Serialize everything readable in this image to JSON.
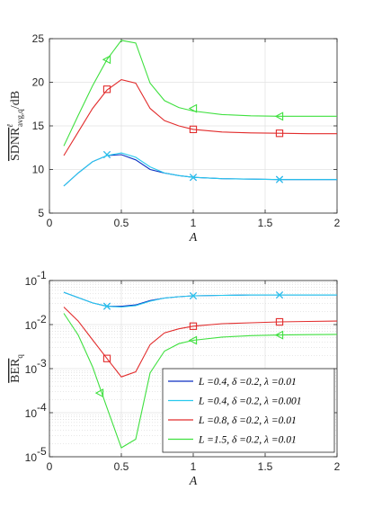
{
  "chart_data": [
    {
      "type": "line",
      "xlabel": "A",
      "ylabel": "SDNR",
      "ylabel_sub": "avg,q",
      "ylabel_sup": "ℓ",
      "ylabel_unit": "/dB",
      "xlim": [
        0,
        2
      ],
      "ylim": [
        5,
        25
      ],
      "xticks": [
        0,
        0.5,
        1,
        1.5,
        2
      ],
      "xtick_labels": [
        "0",
        "0.5",
        "1",
        "1.5",
        "2"
      ],
      "yticks": [
        5,
        10,
        15,
        20,
        25
      ],
      "ytick_labels": [
        "5",
        "10",
        "15",
        "20",
        "25"
      ],
      "grid": true,
      "series": [
        {
          "name": "L =0.4, δ =0.2, λ =0.01",
          "color": "#0a2fc2",
          "x": [
            0.1,
            0.2,
            0.3,
            0.4,
            0.5,
            0.6,
            0.7,
            0.8,
            0.9,
            1.0,
            1.2,
            1.4,
            1.6,
            1.8,
            2.0
          ],
          "y": [
            8.1,
            9.6,
            10.9,
            11.6,
            11.7,
            11.1,
            10.0,
            9.6,
            9.3,
            9.1,
            8.95,
            8.9,
            8.85,
            8.85,
            8.85
          ],
          "markers": {
            "symbol": "x",
            "x": [
              0.4,
              1.0,
              1.6
            ],
            "y": [
              11.7,
              9.1,
              8.85
            ]
          }
        },
        {
          "name": "L =0.4, δ =0.2, λ =0.001",
          "color": "#27c9ee",
          "x": [
            0.1,
            0.2,
            0.3,
            0.4,
            0.5,
            0.6,
            0.7,
            0.8,
            0.9,
            1.0,
            1.2,
            1.4,
            1.6,
            1.8,
            2.0
          ],
          "y": [
            8.1,
            9.6,
            10.9,
            11.6,
            11.9,
            11.4,
            10.3,
            9.6,
            9.3,
            9.1,
            8.95,
            8.9,
            8.85,
            8.85,
            8.85
          ],
          "markers": {
            "symbol": "x",
            "x": [
              0.4,
              1.0,
              1.6
            ],
            "y": [
              11.7,
              9.1,
              8.85
            ]
          }
        },
        {
          "name": "L =0.8, δ =0.2, λ =0.01",
          "color": "#e22c2c",
          "x": [
            0.1,
            0.2,
            0.3,
            0.4,
            0.5,
            0.6,
            0.7,
            0.8,
            0.9,
            1.0,
            1.2,
            1.4,
            1.6,
            1.8,
            2.0
          ],
          "y": [
            11.6,
            14.3,
            17.0,
            19.1,
            20.3,
            19.9,
            17.0,
            15.6,
            15.0,
            14.6,
            14.3,
            14.2,
            14.15,
            14.1,
            14.1
          ],
          "markers": {
            "symbol": "square",
            "x": [
              0.4,
              1.0,
              1.6
            ],
            "y": [
              19.2,
              14.6,
              14.15
            ]
          }
        },
        {
          "name": "L =1.5, δ =0.2, λ =0.01",
          "color": "#3fe03f",
          "x": [
            0.1,
            0.2,
            0.3,
            0.4,
            0.5,
            0.6,
            0.7,
            0.8,
            0.9,
            1.0,
            1.2,
            1.4,
            1.6,
            1.8,
            2.0
          ],
          "y": [
            12.7,
            16.2,
            19.6,
            22.6,
            24.8,
            24.5,
            19.9,
            17.9,
            17.1,
            16.7,
            16.3,
            16.15,
            16.1,
            16.1,
            16.1
          ],
          "markers": {
            "symbol": "triangle-left",
            "x": [
              0.4,
              1.0,
              1.6
            ],
            "y": [
              22.6,
              17.0,
              16.1
            ]
          }
        }
      ]
    },
    {
      "type": "line",
      "xlabel": "A",
      "ylabel": "BER",
      "ylabel_sub": "q",
      "yscale": "log",
      "xlim": [
        0,
        2
      ],
      "ylim": [
        1e-05,
        0.1
      ],
      "xticks": [
        0,
        0.5,
        1,
        1.5,
        2
      ],
      "xtick_labels": [
        "0",
        "0.5",
        "1",
        "1.5",
        "2"
      ],
      "yticks": [
        1e-05,
        0.0001,
        0.001,
        0.01,
        0.1
      ],
      "ytick_labels": [
        {
          "base": "10",
          "exp": "-5"
        },
        {
          "base": "10",
          "exp": "-4"
        },
        {
          "base": "10",
          "exp": "-3"
        },
        {
          "base": "10",
          "exp": "-2"
        },
        {
          "base": "10",
          "exp": "-1"
        }
      ],
      "grid": true,
      "legend_position": "bottom-right",
      "series": [
        {
          "name": "L =0.4, δ =0.2, λ =0.01",
          "legend_parts": {
            "L": "0.4",
            "delta": "0.2",
            "lambda": "0.01"
          },
          "color": "#0a2fc2",
          "x": [
            0.1,
            0.2,
            0.3,
            0.4,
            0.5,
            0.6,
            0.7,
            0.8,
            0.9,
            1.0,
            1.2,
            1.4,
            1.6,
            1.8,
            2.0
          ],
          "y": [
            0.054,
            0.041,
            0.031,
            0.026,
            0.026,
            0.028,
            0.035,
            0.04,
            0.043,
            0.045,
            0.046,
            0.047,
            0.047,
            0.047,
            0.047
          ],
          "markers": {
            "symbol": "x",
            "x": [
              0.4,
              1.0,
              1.6
            ],
            "y": [
              0.026,
              0.045,
              0.047
            ]
          }
        },
        {
          "name": "L =0.4, δ =0.2, λ =0.001",
          "legend_parts": {
            "L": "0.4",
            "delta": "0.2",
            "lambda": "0.001"
          },
          "color": "#27c9ee",
          "x": [
            0.1,
            0.2,
            0.3,
            0.4,
            0.5,
            0.6,
            0.7,
            0.8,
            0.9,
            1.0,
            1.2,
            1.4,
            1.6,
            1.8,
            2.0
          ],
          "y": [
            0.054,
            0.041,
            0.031,
            0.026,
            0.025,
            0.027,
            0.034,
            0.04,
            0.043,
            0.045,
            0.046,
            0.047,
            0.047,
            0.047,
            0.047
          ],
          "markers": {
            "symbol": "x",
            "x": [
              0.4,
              1.0,
              1.6
            ],
            "y": [
              0.026,
              0.045,
              0.047
            ]
          }
        },
        {
          "name": "L =0.8, δ =0.2, λ =0.01",
          "legend_parts": {
            "L": "0.8",
            "delta": "0.2",
            "lambda": "0.01"
          },
          "color": "#e22c2c",
          "x": [
            0.1,
            0.2,
            0.3,
            0.4,
            0.5,
            0.6,
            0.7,
            0.8,
            0.9,
            1.0,
            1.2,
            1.4,
            1.6,
            1.8,
            2.0
          ],
          "y": [
            0.025,
            0.012,
            0.0045,
            0.0017,
            0.00065,
            0.00085,
            0.0035,
            0.0065,
            0.008,
            0.0092,
            0.0105,
            0.011,
            0.0115,
            0.0118,
            0.012
          ],
          "markers": {
            "symbol": "square",
            "x": [
              0.4,
              1.0,
              1.6
            ],
            "y": [
              0.0017,
              0.0092,
              0.0115
            ]
          }
        },
        {
          "name": "L =1.5, δ =0.2, λ =0.01",
          "legend_parts": {
            "L": "1.5",
            "delta": "0.2",
            "lambda": "0.01"
          },
          "color": "#3fe03f",
          "x": [
            0.1,
            0.2,
            0.3,
            0.4,
            0.5,
            0.6,
            0.7,
            0.8,
            0.9,
            1.0,
            1.2,
            1.4,
            1.6,
            1.8,
            2.0
          ],
          "y": [
            0.018,
            0.0058,
            0.0011,
            0.00013,
            1.6e-05,
            2.5e-05,
            0.0008,
            0.0025,
            0.0037,
            0.0044,
            0.0052,
            0.0056,
            0.0058,
            0.0059,
            0.006
          ],
          "markers": {
            "symbol": "triangle-left",
            "x": [
              0.35,
              1.0,
              1.6
            ],
            "y": [
              0.00028,
              0.0044,
              0.0058
            ]
          }
        }
      ]
    }
  ]
}
